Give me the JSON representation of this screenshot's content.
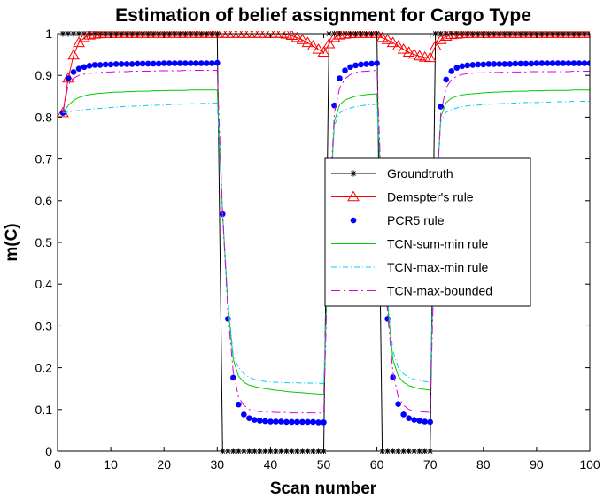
{
  "chart_data": {
    "type": "line",
    "title": "Estimation of belief assignment for Cargo Type",
    "xlabel": "Scan number",
    "ylabel": "m(C)",
    "xlim": [
      0,
      100
    ],
    "ylim": [
      0,
      1
    ],
    "xticks": [
      "0",
      "10",
      "20",
      "30",
      "40",
      "50",
      "60",
      "70",
      "80",
      "90",
      "100"
    ],
    "yticks": [
      "0",
      "0.1",
      "0.2",
      "0.3",
      "0.4",
      "0.5",
      "0.6",
      "0.7",
      "0.8",
      "0.9",
      "1"
    ],
    "grid": false,
    "legend_position": "center-right",
    "x": [
      1,
      2,
      3,
      4,
      5,
      6,
      7,
      8,
      9,
      10,
      11,
      12,
      13,
      14,
      15,
      16,
      17,
      18,
      19,
      20,
      21,
      22,
      23,
      24,
      25,
      26,
      27,
      28,
      29,
      30,
      31,
      32,
      33,
      34,
      35,
      36,
      37,
      38,
      39,
      40,
      41,
      42,
      43,
      44,
      45,
      46,
      47,
      48,
      49,
      50,
      51,
      52,
      53,
      54,
      55,
      56,
      57,
      58,
      59,
      60,
      61,
      62,
      63,
      64,
      65,
      66,
      67,
      68,
      69,
      70,
      71,
      72,
      73,
      74,
      75,
      76,
      77,
      78,
      79,
      80,
      81,
      82,
      83,
      84,
      85,
      86,
      87,
      88,
      89,
      90,
      91,
      92,
      93,
      94,
      95,
      96,
      97,
      98,
      99,
      100
    ],
    "series": [
      {
        "name": "Groundtruth",
        "color": "#000000",
        "marker": "asterisk",
        "values": [
          1,
          1,
          1,
          1,
          1,
          1,
          1,
          1,
          1,
          1,
          1,
          1,
          1,
          1,
          1,
          1,
          1,
          1,
          1,
          1,
          1,
          1,
          1,
          1,
          1,
          1,
          1,
          1,
          1,
          1,
          0,
          0,
          0,
          0,
          0,
          0,
          0,
          0,
          0,
          0,
          0,
          0,
          0,
          0,
          0,
          0,
          0,
          0,
          0,
          0,
          1,
          1,
          1,
          1,
          1,
          1,
          1,
          1,
          1,
          1,
          0,
          0,
          0,
          0,
          0,
          0,
          0,
          0,
          0,
          0,
          1,
          1,
          1,
          1,
          1,
          1,
          1,
          1,
          1,
          1,
          1,
          1,
          1,
          1,
          1,
          1,
          1,
          1,
          1,
          1,
          1,
          1,
          1,
          1,
          1,
          1,
          1,
          1,
          1,
          1
        ]
      },
      {
        "name": "Demspter's rule",
        "color": "#ff0000",
        "marker": "triangle",
        "values": [
          0.81,
          0.893,
          0.948,
          0.978,
          0.99,
          0.996,
          0.998,
          0.999,
          1,
          1,
          1,
          1,
          1,
          1,
          1,
          1,
          1,
          1,
          1,
          1,
          1,
          1,
          1,
          1,
          1,
          1,
          1,
          1,
          1,
          1,
          1,
          1,
          1,
          1,
          1,
          1,
          1,
          1,
          1,
          1,
          1,
          1,
          0.998,
          0.995,
          0.99,
          0.985,
          0.978,
          0.97,
          0.962,
          0.955,
          0.975,
          0.99,
          0.996,
          0.998,
          0.999,
          1,
          1,
          1,
          1,
          1,
          0.99,
          0.985,
          0.978,
          0.97,
          0.962,
          0.955,
          0.95,
          0.946,
          0.943,
          0.942,
          0.97,
          0.985,
          0.993,
          0.997,
          0.998,
          0.999,
          1,
          1,
          1,
          1,
          1,
          1,
          1,
          1,
          1,
          1,
          1,
          1,
          1,
          1,
          1,
          1,
          1,
          1,
          1,
          1,
          1,
          1,
          1,
          1
        ]
      },
      {
        "name": "PCR5 rule",
        "color": "#0000ff",
        "marker": "dot",
        "values": [
          0.81,
          0.893,
          0.908,
          0.916,
          0.92,
          0.923,
          0.925,
          0.925,
          0.926,
          0.926,
          0.927,
          0.927,
          0.927,
          0.927,
          0.928,
          0.928,
          0.928,
          0.928,
          0.928,
          0.929,
          0.929,
          0.929,
          0.929,
          0.929,
          0.929,
          0.929,
          0.929,
          0.929,
          0.929,
          0.93,
          0.568,
          0.317,
          0.176,
          0.112,
          0.088,
          0.079,
          0.075,
          0.073,
          0.072,
          0.071,
          0.071,
          0.071,
          0.07,
          0.07,
          0.07,
          0.07,
          0.07,
          0.07,
          0.069,
          0.069,
          0.555,
          0.828,
          0.893,
          0.912,
          0.92,
          0.924,
          0.926,
          0.927,
          0.928,
          0.929,
          0.565,
          0.317,
          0.177,
          0.113,
          0.088,
          0.079,
          0.075,
          0.073,
          0.071,
          0.07,
          0.565,
          0.825,
          0.89,
          0.91,
          0.918,
          0.922,
          0.924,
          0.925,
          0.926,
          0.926,
          0.927,
          0.927,
          0.927,
          0.927,
          0.927,
          0.928,
          0.928,
          0.928,
          0.928,
          0.929,
          0.929,
          0.929,
          0.929,
          0.929,
          0.929,
          0.929,
          0.929,
          0.929,
          0.929,
          0.929
        ]
      },
      {
        "name": "TCN-sum-min rule",
        "color": "#00cc00",
        "dash": "",
        "values": [
          0.81,
          0.828,
          0.84,
          0.847,
          0.851,
          0.854,
          0.856,
          0.857,
          0.858,
          0.859,
          0.86,
          0.86,
          0.861,
          0.861,
          0.862,
          0.862,
          0.862,
          0.863,
          0.863,
          0.863,
          0.864,
          0.864,
          0.864,
          0.864,
          0.865,
          0.865,
          0.865,
          0.865,
          0.865,
          0.865,
          0.57,
          0.35,
          0.22,
          0.18,
          0.165,
          0.158,
          0.155,
          0.152,
          0.15,
          0.148,
          0.146,
          0.145,
          0.143,
          0.142,
          0.141,
          0.14,
          0.139,
          0.138,
          0.137,
          0.136,
          0.55,
          0.79,
          0.83,
          0.841,
          0.846,
          0.85,
          0.852,
          0.854,
          0.855,
          0.856,
          0.57,
          0.35,
          0.22,
          0.18,
          0.165,
          0.157,
          0.153,
          0.15,
          0.148,
          0.146,
          0.57,
          0.8,
          0.835,
          0.845,
          0.85,
          0.853,
          0.855,
          0.856,
          0.857,
          0.858,
          0.859,
          0.86,
          0.86,
          0.861,
          0.861,
          0.862,
          0.862,
          0.862,
          0.863,
          0.863,
          0.863,
          0.864,
          0.864,
          0.864,
          0.864,
          0.864,
          0.865,
          0.865,
          0.865,
          0.865
        ]
      },
      {
        "name": "TCN-max-min rule",
        "color": "#00ccff",
        "dash": "6,3,1,3",
        "values": [
          0.81,
          0.812,
          0.814,
          0.816,
          0.818,
          0.819,
          0.82,
          0.821,
          0.822,
          0.823,
          0.824,
          0.825,
          0.826,
          0.826,
          0.827,
          0.827,
          0.828,
          0.828,
          0.829,
          0.829,
          0.83,
          0.83,
          0.831,
          0.831,
          0.832,
          0.832,
          0.833,
          0.833,
          0.834,
          0.834,
          0.57,
          0.36,
          0.23,
          0.2,
          0.185,
          0.177,
          0.172,
          0.169,
          0.167,
          0.166,
          0.165,
          0.165,
          0.164,
          0.164,
          0.164,
          0.163,
          0.163,
          0.163,
          0.163,
          0.162,
          0.55,
          0.78,
          0.81,
          0.818,
          0.822,
          0.825,
          0.827,
          0.829,
          0.83,
          0.831,
          0.57,
          0.36,
          0.24,
          0.2,
          0.185,
          0.177,
          0.172,
          0.169,
          0.167,
          0.165,
          0.57,
          0.79,
          0.812,
          0.818,
          0.822,
          0.825,
          0.827,
          0.828,
          0.829,
          0.83,
          0.831,
          0.832,
          0.832,
          0.833,
          0.833,
          0.834,
          0.834,
          0.835,
          0.835,
          0.835,
          0.836,
          0.836,
          0.836,
          0.837,
          0.837,
          0.837,
          0.838,
          0.838,
          0.838,
          0.838
        ]
      },
      {
        "name": "TCN-max-bounded",
        "color": "#dd00dd",
        "dash": "10,4,2,4",
        "values": [
          0.81,
          0.878,
          0.893,
          0.9,
          0.903,
          0.905,
          0.906,
          0.907,
          0.908,
          0.908,
          0.909,
          0.909,
          0.909,
          0.91,
          0.91,
          0.91,
          0.91,
          0.91,
          0.911,
          0.911,
          0.911,
          0.911,
          0.911,
          0.912,
          0.912,
          0.912,
          0.912,
          0.912,
          0.912,
          0.912,
          0.57,
          0.33,
          0.19,
          0.13,
          0.11,
          0.1,
          0.097,
          0.095,
          0.094,
          0.094,
          0.093,
          0.093,
          0.093,
          0.092,
          0.092,
          0.092,
          0.092,
          0.092,
          0.092,
          0.091,
          0.555,
          0.81,
          0.87,
          0.892,
          0.902,
          0.907,
          0.909,
          0.91,
          0.911,
          0.912,
          0.57,
          0.33,
          0.19,
          0.13,
          0.11,
          0.1,
          0.097,
          0.095,
          0.094,
          0.093,
          0.57,
          0.81,
          0.87,
          0.89,
          0.898,
          0.902,
          0.904,
          0.905,
          0.906,
          0.906,
          0.907,
          0.907,
          0.907,
          0.908,
          0.908,
          0.908,
          0.908,
          0.908,
          0.909,
          0.909,
          0.909,
          0.909,
          0.909,
          0.909,
          0.909,
          0.909,
          0.91,
          0.91,
          0.91,
          0.91
        ]
      }
    ]
  }
}
